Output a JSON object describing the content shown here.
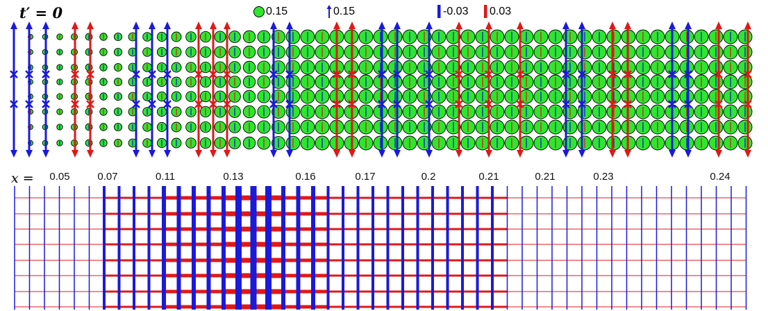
{
  "title": "t′ = 0",
  "legend": {
    "circle_label": "0.15",
    "arrow_label": "0.15",
    "neg_bar_label": "-0.03",
    "pos_bar_label": "0.03"
  },
  "colors": {
    "circle_fill": "#2ee62e",
    "negative": "#1a1adb",
    "positive": "#e01818"
  },
  "x_axis": {
    "prefix": "x =",
    "ticks": [
      "0.05",
      "0.07",
      "0.11",
      "0.13",
      "0.16",
      "0.17",
      "0.2",
      "0.21",
      "0.21",
      "0.23",
      "0.24"
    ]
  }
}
